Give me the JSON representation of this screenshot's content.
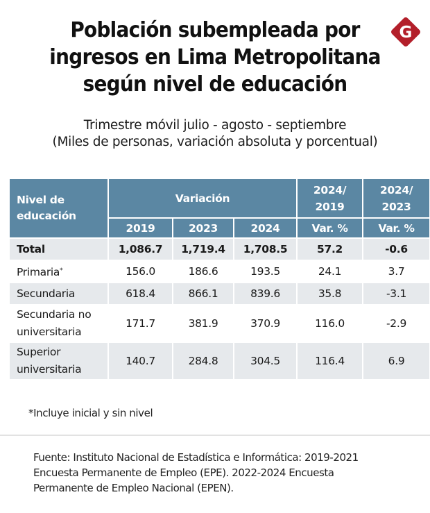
{
  "header": {
    "title_lines": [
      "Población subempleada por",
      "ingresos en Lima Metropolitana",
      "según nivel de educación"
    ],
    "subtitle_lines": [
      "Trimestre móvil julio - agosto - septiembre",
      "(Miles de personas, variación absoluta y porcentual)"
    ],
    "logo": {
      "icon": "gestion-g-logo-icon",
      "letter": "G",
      "color": "#b31f2a"
    }
  },
  "colors": {
    "header_bg": "#5b87a3",
    "row_shade": "#e6e9ec",
    "text": "#1a1a1a"
  },
  "chart_data": {
    "type": "table",
    "title": "Población subempleada por ingresos en Lima Metropolitana según nivel de educación",
    "subtitle": "Trimestre móvil julio - agosto - septiembre (Miles de personas, variación absoluta y porcentual)",
    "header": {
      "level_label_lines": [
        "Nivel de",
        "educación"
      ],
      "group_label": "Variación",
      "years": [
        "2019",
        "2023",
        "2024"
      ],
      "pct_cols": [
        {
          "top_lines": [
            "2024/",
            "2019"
          ],
          "sub": "Var. %"
        },
        {
          "top_lines": [
            "2024/",
            "2023"
          ],
          "sub": "Var. %"
        }
      ]
    },
    "columns": [
      "Nivel de educación",
      "2019",
      "2023",
      "2024",
      "2024/2019 Var. %",
      "2024/2023 Var. %"
    ],
    "rows": [
      {
        "level_lines": [
          "Total"
        ],
        "footnote_mark": "",
        "values": [
          "1,086.7",
          "1,719.4",
          "1,708.5",
          "57.2",
          "-0.6"
        ],
        "bold": true,
        "shaded": true
      },
      {
        "level_lines": [
          "Primaria"
        ],
        "footnote_mark": "*",
        "values": [
          "156.0",
          "186.6",
          "193.5",
          "24.1",
          "3.7"
        ],
        "bold": false,
        "shaded": false
      },
      {
        "level_lines": [
          "Secundaria"
        ],
        "footnote_mark": "",
        "values": [
          "618.4",
          "866.1",
          "839.6",
          "35.8",
          "-3.1"
        ],
        "bold": false,
        "shaded": true
      },
      {
        "level_lines": [
          "Secundaria no",
          "universitaria"
        ],
        "footnote_mark": "",
        "values": [
          "171.7",
          "381.9",
          "370.9",
          "116.0",
          "-2.9"
        ],
        "bold": false,
        "shaded": false
      },
      {
        "level_lines": [
          "Superior",
          "universitaria"
        ],
        "footnote_mark": "",
        "values": [
          "140.7",
          "284.8",
          "304.5",
          "116.4",
          "6.9"
        ],
        "bold": false,
        "shaded": true
      }
    ]
  },
  "footnote": "*Incluye inicial y sin nivel",
  "source_lines": [
    "Fuente: Instituto Nacional de Estadística e Informática: 2019-2021",
    "Encuesta Permanente de Empleo (EPE). 2022-2024 Encuesta",
    "Permanente de Empleo Nacional (EPEN)."
  ]
}
